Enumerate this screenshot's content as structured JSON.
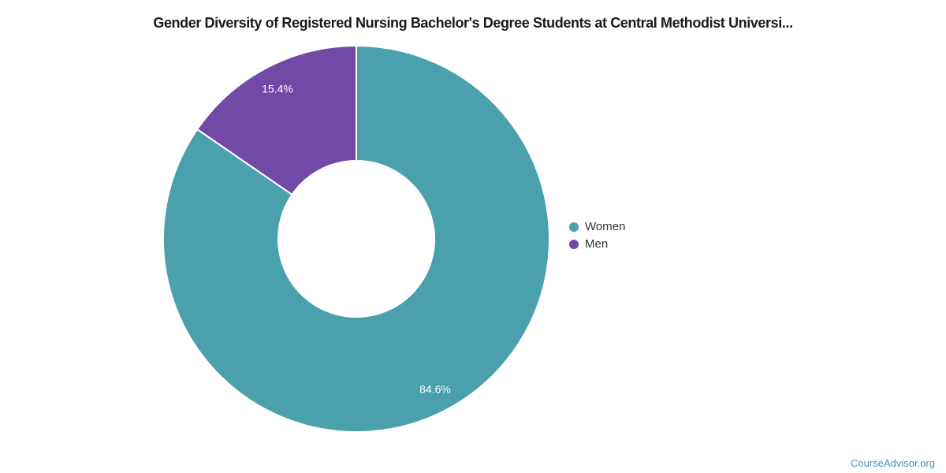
{
  "title": "Gender Diversity of Registered Nursing Bachelor's Degree Students at Central Methodist Universi...",
  "chart_data": {
    "type": "pie",
    "subtype": "donut",
    "title": "Gender Diversity of Registered Nursing Bachelor's Degree Students at Central Methodist Universi...",
    "categories": [
      "Women",
      "Men"
    ],
    "values": [
      84.6,
      15.4
    ],
    "labels": [
      "84.6%",
      "15.4%"
    ],
    "colors": [
      "#4AA0AD",
      "#7349A8"
    ],
    "label_color": "#ffffff",
    "slice_border_color": "#ffffff",
    "start_angle_deg": 0,
    "direction": "clockwise",
    "inner_radius_ratio": 0.405,
    "legend_position": "right"
  },
  "legend": {
    "items": [
      {
        "label": "Women",
        "color": "#4AA0AD"
      },
      {
        "label": "Men",
        "color": "#7349A8"
      }
    ]
  },
  "footer": {
    "brand": "CourseAdvisor.org",
    "color": "#4293BA"
  }
}
